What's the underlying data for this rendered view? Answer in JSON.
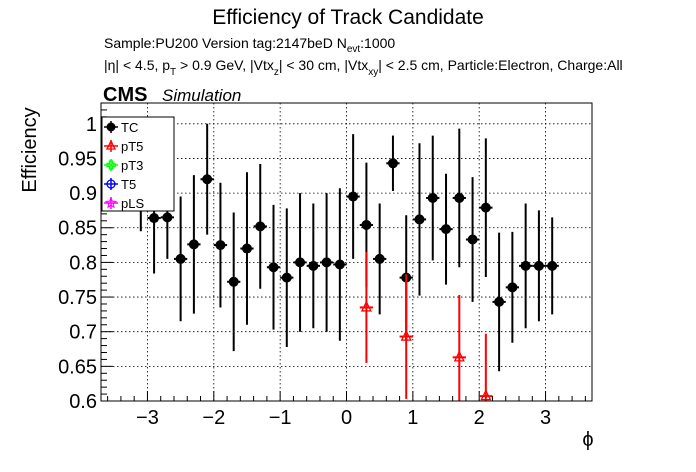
{
  "header": {
    "title": "Efficiency of Track Candidate",
    "sample_line": "Sample:PU200   Version tag:2147beD  N",
    "sample_sub": "evt",
    "sample_value": ":1000",
    "cuts": [
      {
        "t": "|η| < 4.5, p",
        "sub": false
      },
      {
        "t": "T",
        "sub": true
      },
      {
        "t": " > 0.9 GeV, |Vtx",
        "sub": false
      },
      {
        "t": "z",
        "sub": true
      },
      {
        "t": "| < 30 cm, |Vtx",
        "sub": false
      },
      {
        "t": "xy",
        "sub": true
      },
      {
        "t": "| < 2.5 cm, Particle:Electron, Charge:All",
        "sub": false
      }
    ],
    "cms_label": "CMS",
    "cms_sub": "Simulation"
  },
  "chart_data": {
    "type": "scatter",
    "title": "Efficiency of Track Candidate",
    "xlabel": "ϕ",
    "ylabel": "Efficiency",
    "xlim": [
      -3.7,
      3.7
    ],
    "ylim": [
      0.6,
      1.03
    ],
    "xticks": [
      -3,
      -2,
      -1,
      0,
      1,
      2,
      3
    ],
    "xtick_labels": [
      "−3",
      "−2",
      "−1",
      "0",
      "1",
      "2",
      "3"
    ],
    "yticks": [
      0.6,
      0.65,
      0.7,
      0.75,
      0.8,
      0.85,
      0.9,
      0.95,
      1.0
    ],
    "ytick_labels": [
      "0.6",
      "0.65",
      "0.7",
      "0.75",
      "0.8",
      "0.85",
      "0.9",
      "0.95",
      "1"
    ],
    "grid": true,
    "legend_position": "top-left",
    "bin_half_width": 0.1,
    "series": [
      {
        "name": "TC",
        "color": "#000000",
        "marker": "filled-circle",
        "x": [
          -3.1,
          -2.9,
          -2.7,
          -2.5,
          -2.3,
          -2.1,
          -1.9,
          -1.7,
          -1.5,
          -1.3,
          -1.1,
          -0.9,
          -0.7,
          -0.5,
          -0.3,
          -0.1,
          0.1,
          0.3,
          0.5,
          0.7,
          0.9,
          1.1,
          1.3,
          1.5,
          1.7,
          1.9,
          2.1,
          2.3,
          2.5,
          2.7,
          2.9,
          3.1
        ],
        "y": [
          0.895,
          0.864,
          0.865,
          0.805,
          0.826,
          0.92,
          0.825,
          0.772,
          0.82,
          0.852,
          0.793,
          0.778,
          0.8,
          0.795,
          0.8,
          0.797,
          0.895,
          0.854,
          0.805,
          0.943,
          0.778,
          0.862,
          0.893,
          0.848,
          0.893,
          0.833,
          0.879,
          0.743,
          0.764,
          0.795,
          0.795,
          0.795
        ],
        "err": [
          0.05,
          0.08,
          0.06,
          0.09,
          0.1,
          0.08,
          0.09,
          0.1,
          0.11,
          0.09,
          0.09,
          0.1,
          0.1,
          0.09,
          0.1,
          0.11,
          0.09,
          0.09,
          0.08,
          0.04,
          0.09,
          0.11,
          0.09,
          0.08,
          0.1,
          0.09,
          0.1,
          0.1,
          0.08,
          0.09,
          0.08,
          0.07
        ]
      },
      {
        "name": "pT5",
        "color": "#ff0000",
        "marker": "open-triangle",
        "x": [
          0.3,
          0.9,
          1.7,
          2.1
        ],
        "y": [
          0.735,
          0.693,
          0.663,
          0.607
        ],
        "err": [
          0.08,
          0.09,
          0.09,
          0.09
        ]
      },
      {
        "name": "pT3",
        "color": "#00ff00",
        "marker": "open-cross",
        "x": [],
        "y": [],
        "err": []
      },
      {
        "name": "T5",
        "color": "#0000ff",
        "marker": "open-circle",
        "x": [],
        "y": [],
        "err": []
      },
      {
        "name": "pLS",
        "color": "#ff00ff",
        "marker": "star",
        "x": [],
        "y": [],
        "err": []
      }
    ]
  }
}
